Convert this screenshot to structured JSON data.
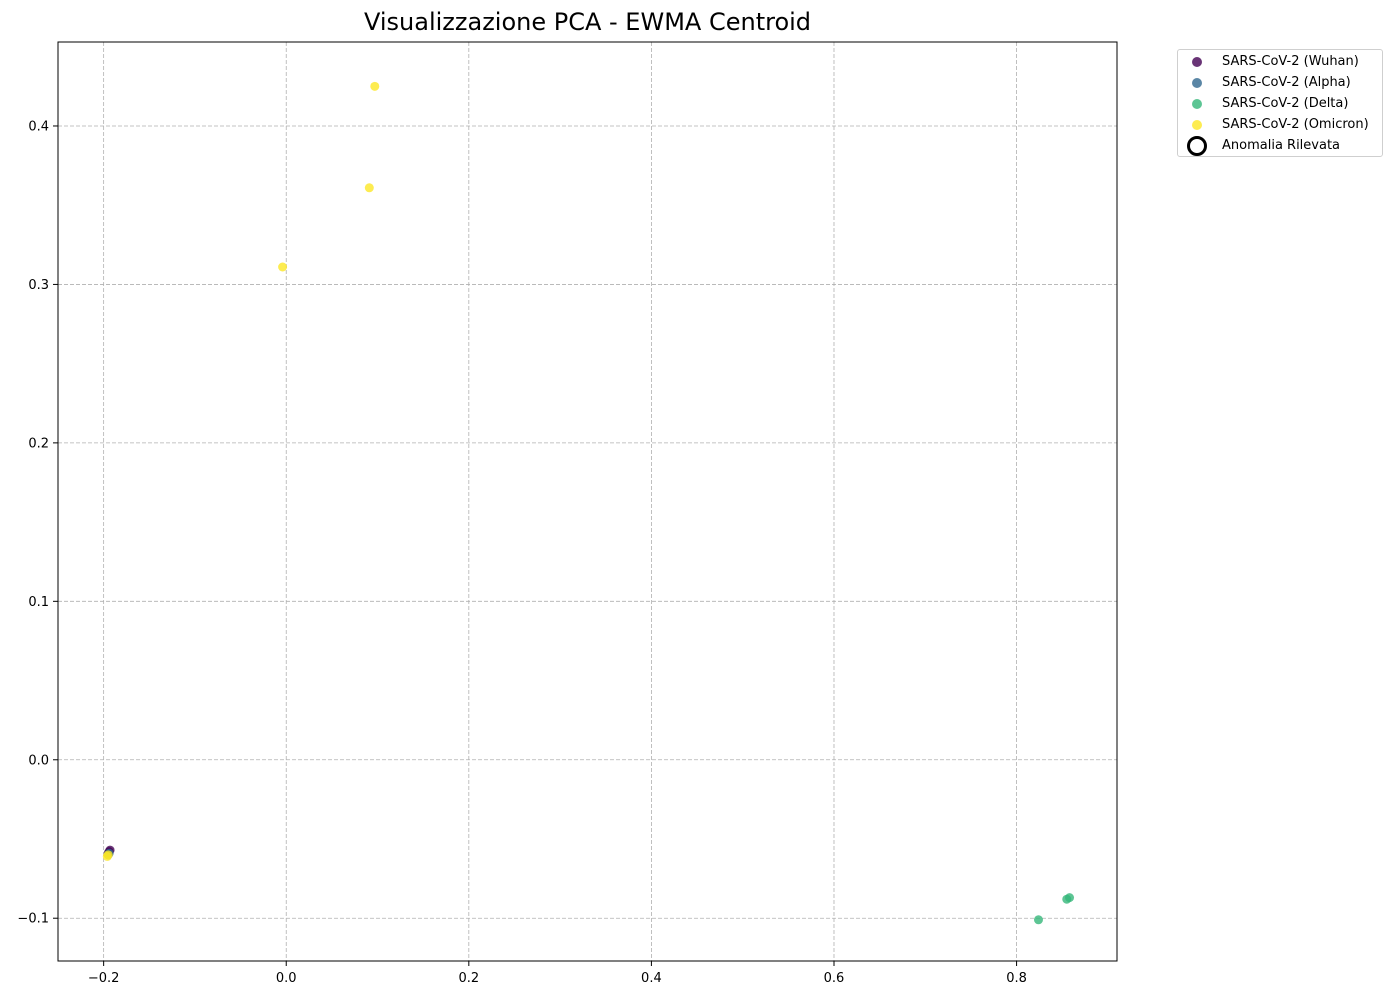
{
  "chart_data": {
    "type": "scatter",
    "title": "Visualizzazione PCA - EWMA Centroid",
    "xlabel": "",
    "ylabel": "",
    "xlim": [
      -0.25,
      0.91
    ],
    "ylim": [
      -0.127,
      0.453
    ],
    "grid": true,
    "legend_position": "outside-top-right",
    "x_ticks": [
      -0.2,
      0.0,
      0.2,
      0.4,
      0.6,
      0.8
    ],
    "x_tick_labels": [
      "−0.2",
      "0.0",
      "0.2",
      "0.4",
      "0.6",
      "0.8"
    ],
    "y_ticks": [
      -0.1,
      0.0,
      0.1,
      0.2,
      0.3,
      0.4
    ],
    "y_tick_labels": [
      "−0.1",
      "0.0",
      "0.1",
      "0.2",
      "0.3",
      "0.4"
    ],
    "series": [
      {
        "name": "SARS-CoV-2 (Wuhan)",
        "color": "#440154",
        "points": [
          [
            -0.193,
            -0.057
          ],
          [
            -0.194,
            -0.058
          ],
          [
            -0.195,
            -0.059
          ]
        ]
      },
      {
        "name": "SARS-CoV-2 (Alpha)",
        "color": "#31688e",
        "points": [
          [
            -0.194,
            -0.059
          ],
          [
            -0.195,
            -0.06
          ]
        ]
      },
      {
        "name": "SARS-CoV-2 (Delta)",
        "color": "#35b779",
        "points": [
          [
            0.824,
            -0.101
          ],
          [
            0.855,
            -0.088
          ],
          [
            0.858,
            -0.087
          ]
        ]
      },
      {
        "name": "SARS-CoV-2 (Omicron)",
        "color": "#fde725",
        "points": [
          [
            0.097,
            0.425
          ],
          [
            0.091,
            0.361
          ],
          [
            -0.004,
            0.311
          ],
          [
            -0.195,
            -0.06
          ],
          [
            -0.196,
            -0.061
          ]
        ]
      }
    ],
    "anomaly_legend": "Anomalia Rilevata"
  }
}
